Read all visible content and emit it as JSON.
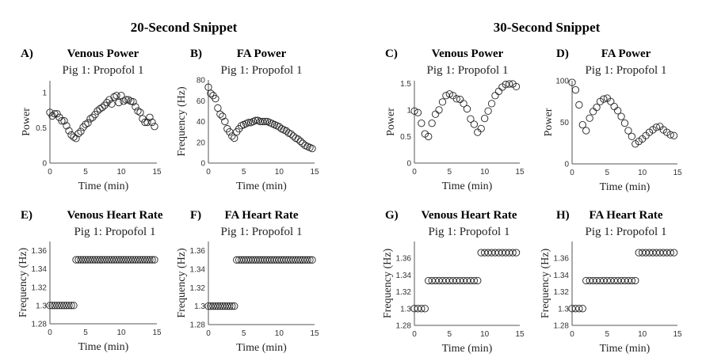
{
  "headers": [
    "20-Second Snippet",
    "30-Second Snippet"
  ],
  "chart_data": [
    {
      "type": "scatter",
      "panel": "A)",
      "title": "Venous Power",
      "subtitle": "Pig 1: Propofol 1",
      "xlabel": "Time (min)",
      "ylabel": "Power",
      "xlim": [
        0,
        15
      ],
      "ylim": [
        0,
        1.17
      ],
      "xticks": [
        "0",
        "5",
        "10",
        "15"
      ],
      "xtick_values": [
        0,
        5,
        10,
        15
      ],
      "yticks": [
        "0",
        "0.5",
        "1"
      ],
      "ytick_values": [
        0,
        0.5,
        1
      ],
      "x_step": 0.3333,
      "y": [
        0.72,
        0.67,
        0.7,
        0.7,
        0.65,
        0.6,
        0.6,
        0.53,
        0.46,
        0.4,
        0.37,
        0.35,
        0.42,
        0.45,
        0.51,
        0.55,
        0.57,
        0.63,
        0.65,
        0.69,
        0.74,
        0.77,
        0.79,
        0.82,
        0.86,
        0.9,
        0.84,
        0.94,
        0.96,
        0.86,
        0.96,
        0.88,
        0.9,
        0.9,
        0.88,
        0.87,
        0.8,
        0.74,
        0.72,
        0.63,
        0.58,
        0.58,
        0.65,
        0.58,
        0.52
      ]
    },
    {
      "type": "scatter",
      "panel": "B)",
      "title": "FA Power",
      "subtitle": "Pig 1: Propofol 1",
      "xlabel": "Time (min)",
      "ylabel": "Frequency (Hz)",
      "xlim": [
        0,
        15
      ],
      "ylim": [
        0,
        80
      ],
      "xticks": [
        "0",
        "5",
        "10",
        "15"
      ],
      "xtick_values": [
        0,
        5,
        10,
        15
      ],
      "yticks": [
        "0",
        "20",
        "40",
        "60",
        "80"
      ],
      "ytick_values": [
        0,
        20,
        40,
        60,
        80
      ],
      "x_step": 0.3333,
      "y": [
        73,
        67,
        65,
        62,
        53,
        47,
        45,
        40,
        33,
        30,
        26,
        24,
        30,
        33,
        36,
        37,
        38,
        39,
        39,
        40,
        41,
        41,
        40,
        40,
        40,
        40,
        39,
        38,
        37,
        36,
        35,
        33,
        32,
        31,
        29,
        28,
        26,
        24,
        23,
        21,
        19,
        17,
        16,
        15,
        14
      ]
    },
    {
      "type": "scatter",
      "panel": "C)",
      "title": "Venous Power",
      "subtitle": "Pig 1: Propofol 1",
      "xlabel": "Time (min)",
      "ylabel": "Power",
      "xlim": [
        0,
        15
      ],
      "ylim": [
        0,
        1.55
      ],
      "xticks": [
        "0",
        "5",
        "10",
        "15"
      ],
      "xtick_values": [
        0,
        5,
        10,
        15
      ],
      "yticks": [
        "0",
        "0.5",
        "1",
        "1.5"
      ],
      "ytick_values": [
        0,
        0.5,
        1,
        1.5
      ],
      "x_step": 0.5,
      "y": [
        0.98,
        0.95,
        0.75,
        0.55,
        0.5,
        0.75,
        0.92,
        1.0,
        1.15,
        1.27,
        1.3,
        1.27,
        1.21,
        1.2,
        1.12,
        1.02,
        0.83,
        0.73,
        0.58,
        0.65,
        0.84,
        0.98,
        1.12,
        1.27,
        1.35,
        1.43,
        1.48,
        1.49,
        1.49,
        1.44
      ]
    },
    {
      "type": "scatter",
      "panel": "D)",
      "title": "FA Power",
      "subtitle": "Pig 1: Propofol 1",
      "xlabel": "Time (min)",
      "ylabel": "Power",
      "xlim": [
        0,
        15
      ],
      "ylim": [
        0,
        100
      ],
      "xticks": [
        "0",
        "5",
        "10",
        "15"
      ],
      "xtick_values": [
        0,
        5,
        10,
        15
      ],
      "yticks": [
        "0",
        "50",
        "100"
      ],
      "ytick_values": [
        0,
        50,
        100
      ],
      "x_step": 0.5,
      "y": [
        98,
        89,
        71,
        47,
        40,
        55,
        63,
        68,
        75,
        78,
        79,
        75,
        69,
        64,
        57,
        49,
        40,
        33,
        24,
        27,
        30,
        34,
        38,
        41,
        44,
        45,
        41,
        38,
        35,
        34
      ]
    },
    {
      "type": "scatter",
      "panel": "E)",
      "title": "Venous Heart Rate",
      "subtitle": "Pig 1: Propofol 1",
      "xlabel": "Time (min)",
      "ylabel": "Frequency (Hz)",
      "xlim": [
        0,
        15
      ],
      "ylim": [
        1.28,
        1.37
      ],
      "xticks": [
        "0",
        "5",
        "10",
        "15"
      ],
      "xtick_values": [
        0,
        5,
        10,
        15
      ],
      "yticks": [
        "1.28",
        "1.3",
        "1.32",
        "1.34",
        "1.36"
      ],
      "ytick_values": [
        1.28,
        1.3,
        1.32,
        1.34,
        1.36
      ],
      "x_step": 0.3333,
      "y": [
        1.3,
        1.3,
        1.3,
        1.3,
        1.3,
        1.3,
        1.3,
        1.3,
        1.3,
        1.3,
        1.3,
        1.35,
        1.35,
        1.35,
        1.35,
        1.35,
        1.35,
        1.35,
        1.35,
        1.35,
        1.35,
        1.35,
        1.35,
        1.35,
        1.35,
        1.35,
        1.35,
        1.35,
        1.35,
        1.35,
        1.35,
        1.35,
        1.35,
        1.35,
        1.35,
        1.35,
        1.35,
        1.35,
        1.35,
        1.35,
        1.35,
        1.35,
        1.35,
        1.35,
        1.35
      ]
    },
    {
      "type": "scatter",
      "panel": "F)",
      "title": "FA Heart Rate",
      "subtitle": "Pig 1: Propofol 1",
      "xlabel": "Time (min)",
      "ylabel": "Frequency (Hz)",
      "xlim": [
        0,
        15
      ],
      "ylim": [
        1.28,
        1.37
      ],
      "xticks": [
        "0",
        "5",
        "10",
        "15"
      ],
      "xtick_values": [
        0,
        5,
        10,
        15
      ],
      "yticks": [
        "1.28",
        "1.3",
        "1.32",
        "1.34",
        "1.36"
      ],
      "ytick_values": [
        1.28,
        1.3,
        1.32,
        1.34,
        1.36
      ],
      "x_step": 0.3333,
      "y": [
        1.3,
        1.3,
        1.3,
        1.3,
        1.3,
        1.3,
        1.3,
        1.3,
        1.3,
        1.3,
        1.3,
        1.3,
        1.35,
        1.35,
        1.35,
        1.35,
        1.35,
        1.35,
        1.35,
        1.35,
        1.35,
        1.35,
        1.35,
        1.35,
        1.35,
        1.35,
        1.35,
        1.35,
        1.35,
        1.35,
        1.35,
        1.35,
        1.35,
        1.35,
        1.35,
        1.35,
        1.35,
        1.35,
        1.35,
        1.35,
        1.35,
        1.35,
        1.35,
        1.35,
        1.35
      ]
    },
    {
      "type": "scatter",
      "panel": "G)",
      "title": "Venous Heart Rate",
      "subtitle": "Pig 1: Propofol 1",
      "xlabel": "Time (min)",
      "ylabel": "Frequency (Hz)",
      "xlim": [
        0,
        15
      ],
      "ylim": [
        1.28,
        1.38
      ],
      "xticks": [
        "0",
        "5",
        "10",
        "15"
      ],
      "xtick_values": [
        0,
        5,
        10,
        15
      ],
      "yticks": [
        "1.28",
        "1.3",
        "1.32",
        "1.34",
        "1.36"
      ],
      "ytick_values": [
        1.28,
        1.3,
        1.32,
        1.34,
        1.36
      ],
      "x_step": 0.5,
      "y": [
        1.3,
        1.3,
        1.3,
        1.3,
        1.3333,
        1.3333,
        1.3333,
        1.3333,
        1.3333,
        1.3333,
        1.3333,
        1.3333,
        1.3333,
        1.3333,
        1.3333,
        1.3333,
        1.3333,
        1.3333,
        1.3333,
        1.3667,
        1.3667,
        1.3667,
        1.3667,
        1.3667,
        1.3667,
        1.3667,
        1.3667,
        1.3667,
        1.3667,
        1.3667
      ]
    },
    {
      "type": "scatter",
      "panel": "H)",
      "title": "FA Heart Rate",
      "subtitle": "Pig 1: Propofol 1",
      "xlabel": "Time (min)",
      "ylabel": "Frequency (Hz)",
      "xlim": [
        0,
        15
      ],
      "ylim": [
        1.28,
        1.38
      ],
      "xticks": [
        "0",
        "5",
        "10",
        "15"
      ],
      "xtick_values": [
        0,
        5,
        10,
        15
      ],
      "yticks": [
        "1.28",
        "1.3",
        "1.32",
        "1.34",
        "1.36"
      ],
      "ytick_values": [
        1.28,
        1.3,
        1.32,
        1.34,
        1.36
      ],
      "x_step": 0.5,
      "y": [
        1.3,
        1.3,
        1.3,
        1.3,
        1.3333,
        1.3333,
        1.3333,
        1.3333,
        1.3333,
        1.3333,
        1.3333,
        1.3333,
        1.3333,
        1.3333,
        1.3333,
        1.3333,
        1.3333,
        1.3333,
        1.3333,
        1.3667,
        1.3667,
        1.3667,
        1.3667,
        1.3667,
        1.3667,
        1.3667,
        1.3667,
        1.3667,
        1.3667,
        1.3667
      ]
    }
  ]
}
